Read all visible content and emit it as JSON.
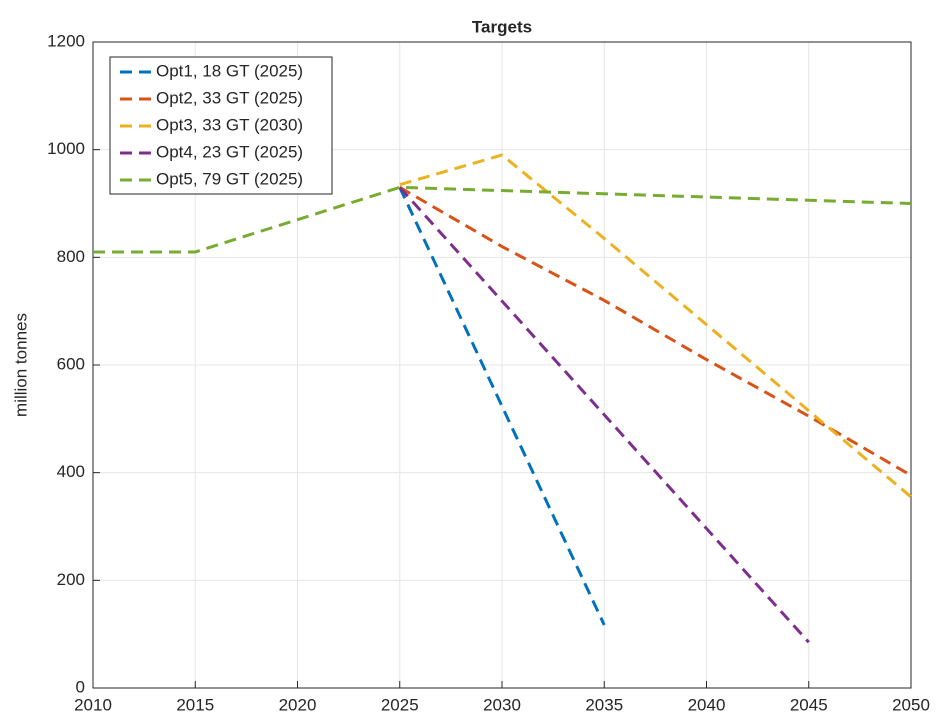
{
  "chart_data": {
    "type": "line",
    "title": "Targets",
    "y_label": "million tonnes",
    "xlim": [
      2010,
      2050
    ],
    "xticks": [
      2010,
      2015,
      2020,
      2025,
      2030,
      2035,
      2040,
      2045,
      2050
    ],
    "ylim": [
      0,
      1200
    ],
    "yticks": [
      0,
      200,
      400,
      600,
      800,
      1000,
      1200
    ],
    "grid": true,
    "legend": "upper-left",
    "series": [
      {
        "name": "Opt1, 18 GT (2025)",
        "color": "#0072BD",
        "x": [
          2025,
          2035
        ],
        "values": [
          930,
          117
        ]
      },
      {
        "name": "Opt2, 33 GT (2025)",
        "color": "#D95319",
        "x": [
          2025,
          2030,
          2035,
          2040,
          2045,
          2050
        ],
        "values": [
          930,
          820,
          720,
          610,
          505,
          395
        ]
      },
      {
        "name": "Opt3, 33 GT (2030)",
        "color": "#EDB120",
        "x": [
          2025,
          2030,
          2035,
          2040,
          2045,
          2050
        ],
        "values": [
          935,
          990,
          835,
          675,
          515,
          355
        ]
      },
      {
        "name": "Opt4, 23 GT (2025)",
        "color": "#7E2F8E",
        "x": [
          2025,
          2045
        ],
        "values": [
          930,
          85
        ]
      },
      {
        "name": "Opt5, 79 GT (2025)",
        "color": "#77AC30",
        "x": [
          2010,
          2015,
          2020,
          2025,
          2050
        ],
        "values": [
          810,
          810,
          870,
          930,
          900
        ]
      }
    ]
  }
}
